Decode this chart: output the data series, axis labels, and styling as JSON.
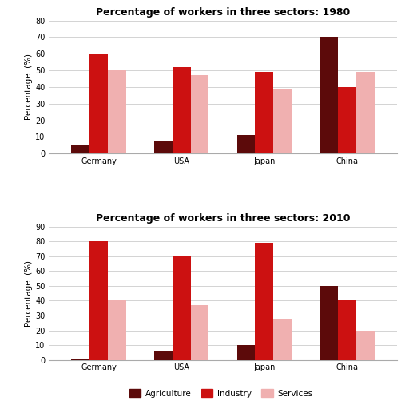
{
  "title_1980": "Percentage of workers in three sectors: 1980",
  "title_2010": "Percentage of workers in three sectors: 2010",
  "countries": [
    "Germany",
    "USA",
    "Japan",
    "China"
  ],
  "sectors": [
    "Agriculture",
    "Industry",
    "Services"
  ],
  "colors": [
    "#5c0a0a",
    "#cc1111",
    "#f0b0b0"
  ],
  "data_1980": {
    "Agriculture": [
      5,
      8,
      11,
      70
    ],
    "Industry": [
      60,
      52,
      49,
      40
    ],
    "Services": [
      50,
      47,
      39,
      49
    ]
  },
  "data_2010": {
    "Agriculture": [
      1,
      6,
      10,
      50
    ],
    "Industry": [
      80,
      70,
      79,
      40
    ],
    "Services": [
      40,
      37,
      28,
      20
    ]
  },
  "ylim_1980": [
    0,
    80
  ],
  "ylim_2010": [
    0,
    90
  ],
  "yticks_1980": [
    0,
    10,
    20,
    30,
    40,
    50,
    60,
    70,
    80
  ],
  "yticks_2010": [
    0,
    10,
    20,
    30,
    40,
    50,
    60,
    70,
    80,
    90
  ],
  "ylabel": "Percentage  (%)",
  "bar_width": 0.22,
  "background_color": "#ffffff",
  "grid_color": "#cccccc",
  "legend_labels": [
    "Agriculture",
    "Industry",
    "Services"
  ],
  "title_fontsize": 9,
  "tick_fontsize": 7,
  "ylabel_fontsize": 7.5
}
